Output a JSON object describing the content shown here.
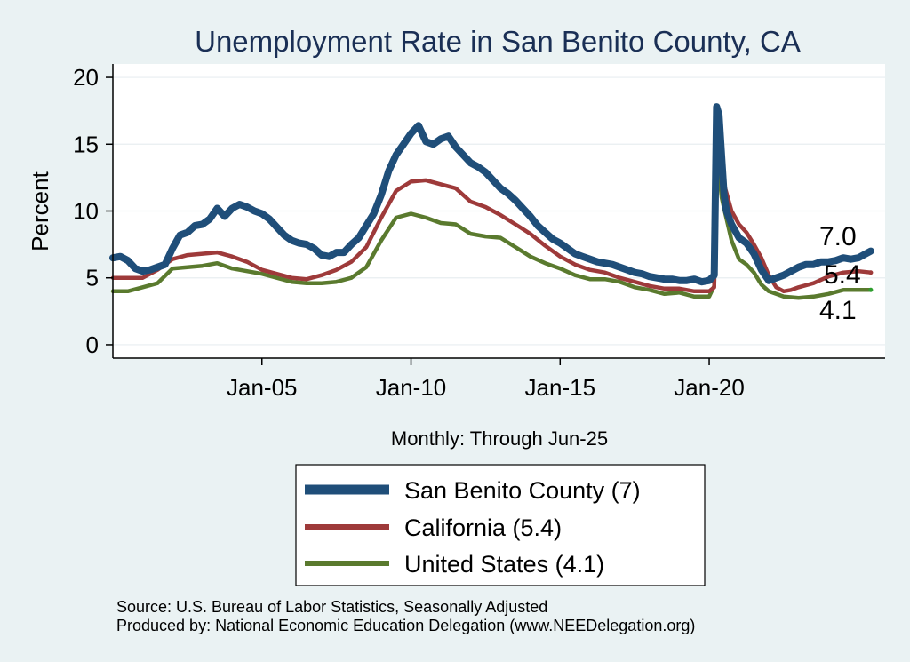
{
  "chart_data": {
    "type": "line",
    "title": "Unemployment Rate in San Benito  County, CA",
    "ylabel": "Percent",
    "xlabel": "Monthly: Through Jun-25",
    "ylim": [
      -1,
      21
    ],
    "xlim": [
      2000.0,
      2025.9
    ],
    "yticks": [
      0,
      5,
      10,
      15,
      20
    ],
    "xticks": [
      {
        "label": "Jan-05",
        "value": 2005.0
      },
      {
        "label": "Jan-10",
        "value": 2010.0
      },
      {
        "label": "Jan-15",
        "value": 2015.0
      },
      {
        "label": "Jan-20",
        "value": 2020.0
      }
    ],
    "series": [
      {
        "name": "San Benito  County",
        "legend": "San Benito  County (7)",
        "color": "#1f4e79",
        "end_label": "7.0",
        "points": [
          [
            2000.0,
            6.5
          ],
          [
            2000.25,
            6.6
          ],
          [
            2000.5,
            6.3
          ],
          [
            2000.75,
            5.7
          ],
          [
            2001.0,
            5.5
          ],
          [
            2001.25,
            5.6
          ],
          [
            2001.5,
            5.8
          ],
          [
            2001.75,
            6.0
          ],
          [
            2002.0,
            7.2
          ],
          [
            2002.25,
            8.2
          ],
          [
            2002.5,
            8.4
          ],
          [
            2002.75,
            8.9
          ],
          [
            2003.0,
            9.0
          ],
          [
            2003.25,
            9.4
          ],
          [
            2003.5,
            10.2
          ],
          [
            2003.75,
            9.6
          ],
          [
            2004.0,
            10.2
          ],
          [
            2004.25,
            10.5
          ],
          [
            2004.5,
            10.3
          ],
          [
            2004.75,
            10.0
          ],
          [
            2005.0,
            9.8
          ],
          [
            2005.25,
            9.4
          ],
          [
            2005.5,
            8.8
          ],
          [
            2005.75,
            8.2
          ],
          [
            2006.0,
            7.8
          ],
          [
            2006.25,
            7.6
          ],
          [
            2006.5,
            7.5
          ],
          [
            2006.75,
            7.2
          ],
          [
            2007.0,
            6.7
          ],
          [
            2007.25,
            6.6
          ],
          [
            2007.5,
            6.9
          ],
          [
            2007.75,
            6.9
          ],
          [
            2008.0,
            7.5
          ],
          [
            2008.25,
            8.0
          ],
          [
            2008.5,
            8.9
          ],
          [
            2008.75,
            9.8
          ],
          [
            2009.0,
            11.2
          ],
          [
            2009.25,
            13.0
          ],
          [
            2009.5,
            14.2
          ],
          [
            2009.75,
            15.0
          ],
          [
            2010.0,
            15.8
          ],
          [
            2010.25,
            16.4
          ],
          [
            2010.5,
            15.2
          ],
          [
            2010.75,
            15.0
          ],
          [
            2011.0,
            15.4
          ],
          [
            2011.25,
            15.6
          ],
          [
            2011.5,
            14.8
          ],
          [
            2011.75,
            14.2
          ],
          [
            2012.0,
            13.6
          ],
          [
            2012.25,
            13.3
          ],
          [
            2012.5,
            12.9
          ],
          [
            2012.75,
            12.3
          ],
          [
            2013.0,
            11.7
          ],
          [
            2013.25,
            11.3
          ],
          [
            2013.5,
            10.8
          ],
          [
            2013.75,
            10.2
          ],
          [
            2014.0,
            9.6
          ],
          [
            2014.25,
            8.9
          ],
          [
            2014.5,
            8.4
          ],
          [
            2014.75,
            7.9
          ],
          [
            2015.0,
            7.6
          ],
          [
            2015.25,
            7.2
          ],
          [
            2015.5,
            6.8
          ],
          [
            2015.75,
            6.6
          ],
          [
            2016.0,
            6.4
          ],
          [
            2016.25,
            6.2
          ],
          [
            2016.5,
            6.1
          ],
          [
            2016.75,
            6.0
          ],
          [
            2017.0,
            5.8
          ],
          [
            2017.25,
            5.6
          ],
          [
            2017.5,
            5.4
          ],
          [
            2017.75,
            5.3
          ],
          [
            2018.0,
            5.1
          ],
          [
            2018.25,
            5.0
          ],
          [
            2018.5,
            4.9
          ],
          [
            2018.75,
            4.9
          ],
          [
            2019.0,
            4.8
          ],
          [
            2019.25,
            4.8
          ],
          [
            2019.5,
            4.9
          ],
          [
            2019.75,
            4.7
          ],
          [
            2020.0,
            4.8
          ],
          [
            2020.17,
            5.2
          ],
          [
            2020.25,
            17.8
          ],
          [
            2020.33,
            17.2
          ],
          [
            2020.42,
            14.0
          ],
          [
            2020.5,
            11.2
          ],
          [
            2020.58,
            10.0
          ],
          [
            2020.75,
            9.0
          ],
          [
            2021.0,
            8.0
          ],
          [
            2021.25,
            7.6
          ],
          [
            2021.5,
            6.8
          ],
          [
            2021.75,
            5.6
          ],
          [
            2022.0,
            4.8
          ],
          [
            2022.25,
            5.0
          ],
          [
            2022.5,
            5.2
          ],
          [
            2022.75,
            5.5
          ],
          [
            2023.0,
            5.8
          ],
          [
            2023.25,
            6.0
          ],
          [
            2023.5,
            6.0
          ],
          [
            2023.75,
            6.2
          ],
          [
            2024.0,
            6.2
          ],
          [
            2024.25,
            6.3
          ],
          [
            2024.5,
            6.5
          ],
          [
            2024.75,
            6.4
          ],
          [
            2025.0,
            6.5
          ],
          [
            2025.25,
            6.8
          ],
          [
            2025.42,
            7.0
          ]
        ]
      },
      {
        "name": "California",
        "legend": "California (5.4)",
        "color": "#9e3a3a",
        "end_label": "5.4",
        "points": [
          [
            2000.0,
            5.0
          ],
          [
            2000.5,
            5.0
          ],
          [
            2001.0,
            5.0
          ],
          [
            2001.5,
            5.6
          ],
          [
            2002.0,
            6.4
          ],
          [
            2002.5,
            6.7
          ],
          [
            2003.0,
            6.8
          ],
          [
            2003.5,
            6.9
          ],
          [
            2004.0,
            6.6
          ],
          [
            2004.5,
            6.2
          ],
          [
            2005.0,
            5.6
          ],
          [
            2005.5,
            5.3
          ],
          [
            2006.0,
            5.0
          ],
          [
            2006.5,
            4.9
          ],
          [
            2007.0,
            5.2
          ],
          [
            2007.5,
            5.6
          ],
          [
            2008.0,
            6.2
          ],
          [
            2008.5,
            7.3
          ],
          [
            2009.0,
            9.5
          ],
          [
            2009.5,
            11.5
          ],
          [
            2010.0,
            12.2
          ],
          [
            2010.5,
            12.3
          ],
          [
            2011.0,
            12.0
          ],
          [
            2011.5,
            11.7
          ],
          [
            2012.0,
            10.7
          ],
          [
            2012.5,
            10.3
          ],
          [
            2013.0,
            9.7
          ],
          [
            2013.5,
            9.0
          ],
          [
            2014.0,
            8.3
          ],
          [
            2014.5,
            7.4
          ],
          [
            2015.0,
            6.6
          ],
          [
            2015.5,
            6.0
          ],
          [
            2016.0,
            5.6
          ],
          [
            2016.5,
            5.4
          ],
          [
            2017.0,
            5.0
          ],
          [
            2017.5,
            4.7
          ],
          [
            2018.0,
            4.4
          ],
          [
            2018.5,
            4.2
          ],
          [
            2019.0,
            4.2
          ],
          [
            2019.5,
            4.0
          ],
          [
            2020.0,
            4.0
          ],
          [
            2020.17,
            4.3
          ],
          [
            2020.25,
            16.0
          ],
          [
            2020.42,
            14.0
          ],
          [
            2020.5,
            12.0
          ],
          [
            2020.75,
            10.0
          ],
          [
            2021.0,
            9.0
          ],
          [
            2021.25,
            8.4
          ],
          [
            2021.5,
            7.5
          ],
          [
            2021.75,
            6.5
          ],
          [
            2022.0,
            5.2
          ],
          [
            2022.25,
            4.3
          ],
          [
            2022.5,
            4.0
          ],
          [
            2022.75,
            4.1
          ],
          [
            2023.0,
            4.3
          ],
          [
            2023.5,
            4.6
          ],
          [
            2024.0,
            5.1
          ],
          [
            2024.5,
            5.4
          ],
          [
            2025.0,
            5.5
          ],
          [
            2025.42,
            5.4
          ]
        ]
      },
      {
        "name": "United States",
        "legend": "United States (4.1)",
        "color": "#5a7a2e",
        "end_label": "4.1",
        "points": [
          [
            2000.0,
            4.0
          ],
          [
            2000.5,
            4.0
          ],
          [
            2001.0,
            4.3
          ],
          [
            2001.5,
            4.6
          ],
          [
            2002.0,
            5.7
          ],
          [
            2002.5,
            5.8
          ],
          [
            2003.0,
            5.9
          ],
          [
            2003.5,
            6.1
          ],
          [
            2004.0,
            5.7
          ],
          [
            2004.5,
            5.5
          ],
          [
            2005.0,
            5.3
          ],
          [
            2005.5,
            5.0
          ],
          [
            2006.0,
            4.7
          ],
          [
            2006.5,
            4.6
          ],
          [
            2007.0,
            4.6
          ],
          [
            2007.5,
            4.7
          ],
          [
            2008.0,
            5.0
          ],
          [
            2008.5,
            5.8
          ],
          [
            2009.0,
            7.8
          ],
          [
            2009.5,
            9.5
          ],
          [
            2010.0,
            9.8
          ],
          [
            2010.5,
            9.5
          ],
          [
            2011.0,
            9.1
          ],
          [
            2011.5,
            9.0
          ],
          [
            2012.0,
            8.3
          ],
          [
            2012.5,
            8.1
          ],
          [
            2013.0,
            8.0
          ],
          [
            2013.5,
            7.3
          ],
          [
            2014.0,
            6.6
          ],
          [
            2014.5,
            6.1
          ],
          [
            2015.0,
            5.7
          ],
          [
            2015.5,
            5.2
          ],
          [
            2016.0,
            4.9
          ],
          [
            2016.5,
            4.9
          ],
          [
            2017.0,
            4.7
          ],
          [
            2017.5,
            4.3
          ],
          [
            2018.0,
            4.1
          ],
          [
            2018.5,
            3.8
          ],
          [
            2019.0,
            3.9
          ],
          [
            2019.5,
            3.6
          ],
          [
            2020.0,
            3.6
          ],
          [
            2020.17,
            4.4
          ],
          [
            2020.25,
            14.7
          ],
          [
            2020.42,
            11.0
          ],
          [
            2020.5,
            10.2
          ],
          [
            2020.75,
            7.8
          ],
          [
            2021.0,
            6.4
          ],
          [
            2021.25,
            6.0
          ],
          [
            2021.5,
            5.4
          ],
          [
            2021.75,
            4.5
          ],
          [
            2022.0,
            4.0
          ],
          [
            2022.5,
            3.6
          ],
          [
            2023.0,
            3.5
          ],
          [
            2023.5,
            3.6
          ],
          [
            2024.0,
            3.8
          ],
          [
            2024.5,
            4.1
          ],
          [
            2025.0,
            4.1
          ],
          [
            2025.42,
            4.1
          ]
        ]
      }
    ]
  },
  "source_line1": "Source: U.S. Bureau of Labor Statistics, Seasonally Adjusted",
  "source_line2": "Produced by: National Economic Education Delegation (www.NEEDelegation.org)"
}
